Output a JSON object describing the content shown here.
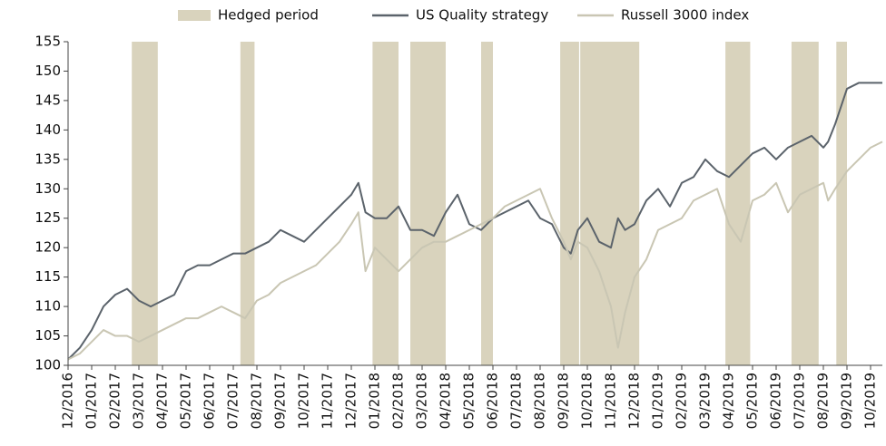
{
  "chart_data": {
    "type": "line",
    "x": [
      0,
      0.5,
      1,
      1.5,
      2,
      2.5,
      3,
      3.5,
      4,
      4.5,
      5,
      5.5,
      6,
      6.5,
      7,
      7.5,
      8,
      8.5,
      9,
      9.5,
      10,
      10.5,
      11,
      11.5,
      12,
      12.3,
      12.6,
      13,
      13.5,
      14,
      14.5,
      15,
      15.5,
      16,
      16.5,
      17,
      17.5,
      18,
      18.5,
      19,
      19.5,
      20,
      20.5,
      21,
      21.3,
      21.6,
      22,
      22.5,
      23,
      23.3,
      23.6,
      24,
      24.5,
      25,
      25.5,
      26,
      26.5,
      27,
      27.5,
      28,
      28.5,
      29,
      29.5,
      30,
      30.5,
      31,
      31.5,
      32,
      32.2,
      32.5,
      33,
      33.5,
      34,
      34.5
    ],
    "series": [
      {
        "name": "Hedged period",
        "color": "#d9d3bd",
        "ranges": [
          [
            2.7,
            3.8
          ],
          [
            7.3,
            7.9
          ],
          [
            12.9,
            14.0
          ],
          [
            14.5,
            16.0
          ],
          [
            17.5,
            18.0
          ],
          [
            20.85,
            21.65
          ],
          [
            21.7,
            24.2
          ],
          [
            27.85,
            28.9
          ],
          [
            30.65,
            31.8
          ],
          [
            32.55,
            33.0
          ]
        ]
      },
      {
        "name": "US Quality strategy",
        "color": "#5b636b",
        "values": [
          101,
          103,
          106,
          110,
          112,
          113,
          111,
          110,
          111,
          112,
          116,
          117,
          117,
          118,
          119,
          119,
          120,
          121,
          123,
          122,
          121,
          123,
          125,
          127,
          129,
          131,
          126,
          125,
          125,
          127,
          123,
          123,
          122,
          126,
          129,
          124,
          123,
          125,
          126,
          127,
          128,
          125,
          124,
          120,
          119,
          123,
          125,
          121,
          120,
          125,
          123,
          124,
          128,
          130,
          127,
          131,
          132,
          135,
          133,
          132,
          134,
          136,
          137,
          135,
          137,
          138,
          139,
          137,
          138,
          141,
          147,
          148,
          148,
          148
        ]
      },
      {
        "name": "Russell 3000 index",
        "color": "#c9c6b3",
        "values": [
          101,
          102,
          104,
          106,
          105,
          105,
          104,
          105,
          106,
          107,
          108,
          108,
          109,
          110,
          109,
          108,
          111,
          112,
          114,
          115,
          116,
          117,
          119,
          121,
          124,
          126,
          116,
          120,
          118,
          116,
          118,
          120,
          121,
          121,
          122,
          123,
          124,
          125,
          127,
          128,
          129,
          130,
          125,
          121,
          118,
          121,
          120,
          116,
          110,
          103,
          109,
          115,
          118,
          123,
          124,
          125,
          128,
          129,
          130,
          124,
          121,
          128,
          129,
          131,
          126,
          129,
          130,
          131,
          128,
          130,
          133,
          135,
          137,
          138
        ]
      }
    ],
    "xlim": [
      0,
      34.5
    ],
    "xticks": [
      {
        "value": 0,
        "label": "12/2016"
      },
      {
        "value": 1,
        "label": "01/2017"
      },
      {
        "value": 2,
        "label": "02/2017"
      },
      {
        "value": 3,
        "label": "03/2017"
      },
      {
        "value": 4,
        "label": "04/2017"
      },
      {
        "value": 5,
        "label": "05/2017"
      },
      {
        "value": 6,
        "label": "06/2017"
      },
      {
        "value": 7,
        "label": "07/2017"
      },
      {
        "value": 8,
        "label": "08/2017"
      },
      {
        "value": 9,
        "label": "09/2017"
      },
      {
        "value": 10,
        "label": "10/2017"
      },
      {
        "value": 11,
        "label": "11/2017"
      },
      {
        "value": 12,
        "label": "12/2017"
      },
      {
        "value": 13,
        "label": "01/2018"
      },
      {
        "value": 14,
        "label": "02/2018"
      },
      {
        "value": 15,
        "label": "03/2018"
      },
      {
        "value": 16,
        "label": "04/2018"
      },
      {
        "value": 17,
        "label": "05/2018"
      },
      {
        "value": 18,
        "label": "06/2018"
      },
      {
        "value": 19,
        "label": "07/2018"
      },
      {
        "value": 20,
        "label": "08/2018"
      },
      {
        "value": 21,
        "label": "09/2018"
      },
      {
        "value": 22,
        "label": "10/2018"
      },
      {
        "value": 23,
        "label": "11/2018"
      },
      {
        "value": 24,
        "label": "12/2018"
      },
      {
        "value": 25,
        "label": "01/2019"
      },
      {
        "value": 26,
        "label": "02/2019"
      },
      {
        "value": 27,
        "label": "03/2019"
      },
      {
        "value": 28,
        "label": "04/2019"
      },
      {
        "value": 29,
        "label": "05/2019"
      },
      {
        "value": 30,
        "label": "06/2019"
      },
      {
        "value": 31,
        "label": "07/2019"
      },
      {
        "value": 32,
        "label": "08/2019"
      },
      {
        "value": 33,
        "label": "09/2019"
      },
      {
        "value": 34,
        "label": "10/2019"
      }
    ],
    "ylim": [
      100,
      155
    ],
    "yticks": [
      100,
      105,
      110,
      115,
      120,
      125,
      130,
      135,
      140,
      145,
      150,
      155
    ],
    "grid": false,
    "legend": "top"
  }
}
